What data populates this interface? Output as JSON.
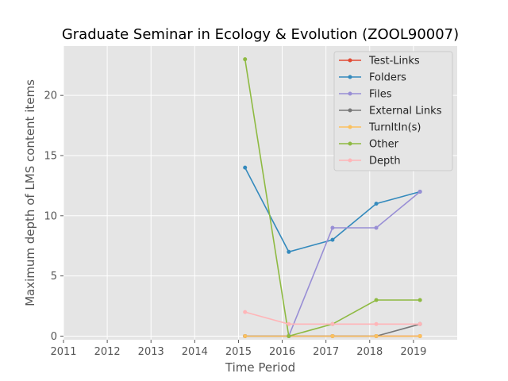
{
  "chart_data": {
    "type": "line",
    "title": "Graduate Seminar in Ecology & Evolution (ZOOL90007)",
    "xlabel": "Time Period",
    "ylabel": "Maximum depth of LMS content items",
    "xlim": [
      2011,
      2020
    ],
    "ylim": [
      -0.3,
      24.1
    ],
    "xticks": [
      2011,
      2012,
      2013,
      2014,
      2015,
      2016,
      2017,
      2018,
      2019
    ],
    "yticks": [
      0,
      5,
      10,
      15,
      20
    ],
    "x": [
      2015.15,
      2016.15,
      2017.15,
      2018.15,
      2019.15
    ],
    "grid": true,
    "legend_position": "top-right",
    "series": [
      {
        "name": "Test-Links",
        "color": "#E24A33",
        "values": [
          0,
          0,
          0,
          0,
          0
        ]
      },
      {
        "name": "Folders",
        "color": "#348ABD",
        "values": [
          14,
          7,
          8,
          11,
          12
        ]
      },
      {
        "name": "Files",
        "color": "#988ED5",
        "values": [
          0,
          0,
          9,
          9,
          12
        ]
      },
      {
        "name": "External Links",
        "color": "#777777",
        "values": [
          0,
          0,
          0,
          0,
          1
        ]
      },
      {
        "name": "TurnItIn(s)",
        "color": "#FBC15E",
        "values": [
          0,
          0,
          0,
          0,
          0
        ]
      },
      {
        "name": "Other",
        "color": "#8EBA42",
        "values": [
          23,
          0,
          1,
          3,
          3
        ]
      },
      {
        "name": "Depth",
        "color": "#FFB5B8",
        "values": [
          2,
          1,
          1,
          1,
          1
        ]
      }
    ]
  }
}
